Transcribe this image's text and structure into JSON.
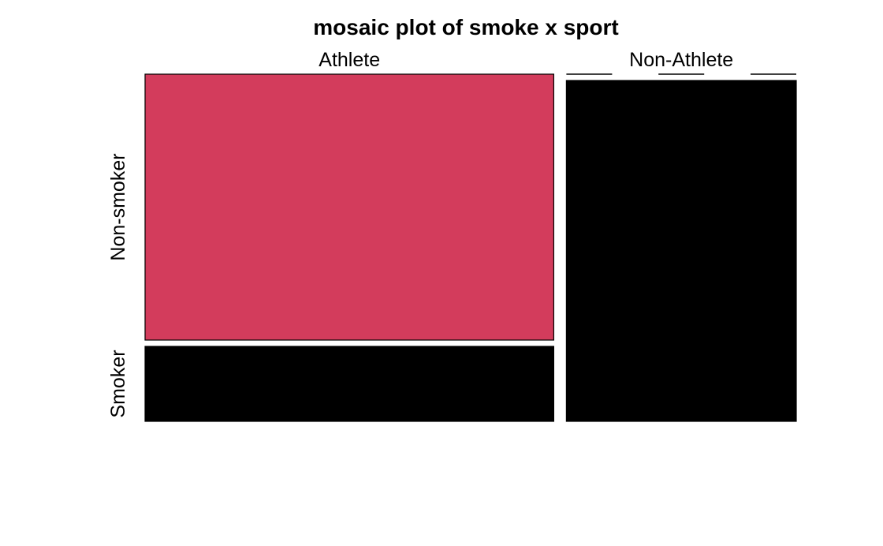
{
  "chart_data": {
    "type": "mosaic",
    "title": "mosaic plot of smoke x sport",
    "x_variable_levels": [
      "Athlete",
      "Non-Athlete"
    ],
    "y_variable_levels": [
      "Non-smoker",
      "Smoker"
    ],
    "x_proportions": [
      0.64,
      0.36
    ],
    "cells": [
      {
        "x": "Athlete",
        "y": "Non-smoker",
        "share_within_x": 0.78,
        "color": "#d33c5c"
      },
      {
        "x": "Athlete",
        "y": "Smoker",
        "share_within_x": 0.22,
        "color": "#000000"
      },
      {
        "x": "Non-Athlete",
        "y": "Non-smoker",
        "share_within_x": 1.0,
        "color": "#000000"
      },
      {
        "x": "Non-Athlete",
        "y": "Smoker",
        "share_within_x": 0.0,
        "color": "#000000"
      }
    ]
  }
}
